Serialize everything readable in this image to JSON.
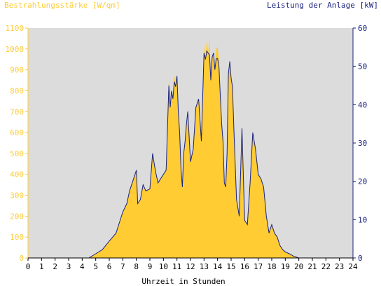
{
  "chart_data": {
    "type": "area",
    "left_axis_label": "Bestrahlungsstärke [W/qm]",
    "right_axis_label": "Leistung der Anlage [kW]",
    "xlabel": "Uhrzeit in Stunden",
    "xlim": [
      0,
      24
    ],
    "x_ticks": [
      "0",
      "1",
      "2",
      "3",
      "4",
      "5",
      "6",
      "7",
      "8",
      "9",
      "10",
      "11",
      "12",
      "13",
      "14",
      "15",
      "16",
      "17",
      "18",
      "19",
      "20",
      "21",
      "22",
      "23",
      "24"
    ],
    "ylim_left": [
      0,
      1100
    ],
    "y_ticks_left": [
      "0",
      "100",
      "200",
      "300",
      "400",
      "500",
      "600",
      "700",
      "800",
      "900",
      "1000",
      "1100"
    ],
    "ylim_right": [
      0,
      60
    ],
    "y_ticks_right": [
      "0",
      "10",
      "20",
      "30",
      "40",
      "50",
      "60"
    ],
    "colors": {
      "irradiance": "#ffcc33",
      "power": "#1a237e",
      "left_axis": "#ffcc33",
      "right_axis": "#1a237e",
      "plot_bg": "#dcdcdc"
    },
    "series": [
      {
        "name": "Bestrahlungsstärke [W/qm]",
        "axis": "left",
        "x": [
          0,
          4.5,
          5,
          5.5,
          6,
          6.5,
          7,
          7.3,
          7.5,
          7.8,
          8,
          8.1,
          8.3,
          8.5,
          8.7,
          9,
          9.2,
          9.4,
          9.6,
          9.8,
          10,
          10.2,
          10.4,
          10.5,
          10.6,
          10.7,
          10.8,
          10.9,
          11,
          11.1,
          11.2,
          11.3,
          11.4,
          11.5,
          11.6,
          11.7,
          11.8,
          12,
          12.2,
          12.4,
          12.6,
          12.8,
          13,
          13.1,
          13.2,
          13.3,
          13.4,
          13.5,
          13.6,
          13.7,
          13.8,
          13.9,
          14,
          14.1,
          14.2,
          14.3,
          14.4,
          14.5,
          14.6,
          14.7,
          14.8,
          14.9,
          15,
          15.1,
          15.2,
          15.4,
          15.6,
          15.8,
          16,
          16.2,
          16.4,
          16.6,
          16.8,
          17,
          17.2,
          17.4,
          17.6,
          17.8,
          18,
          18.2,
          18.4,
          18.6,
          18.8,
          19,
          19.3,
          19.6,
          20,
          20.4,
          24
        ],
        "values": [
          0,
          0,
          20,
          40,
          80,
          120,
          220,
          260,
          320,
          380,
          420,
          260,
          280,
          350,
          320,
          330,
          500,
          420,
          360,
          380,
          400,
          420,
          860,
          720,
          800,
          760,
          880,
          820,
          870,
          700,
          600,
          420,
          340,
          500,
          560,
          640,
          700,
          460,
          520,
          720,
          760,
          560,
          1020,
          950,
          1040,
          980,
          1050,
          850,
          960,
          980,
          900,
          1000,
          1010,
          950,
          780,
          640,
          560,
          360,
          340,
          500,
          880,
          940,
          860,
          820,
          620,
          280,
          200,
          620,
          180,
          160,
          360,
          600,
          520,
          400,
          380,
          340,
          200,
          120,
          160,
          120,
          100,
          60,
          40,
          30,
          20,
          10,
          0,
          0,
          0
        ]
      },
      {
        "name": "Leistung der Anlage [kW]",
        "axis": "right",
        "x": [
          0,
          4.5,
          5,
          5.5,
          6,
          6.5,
          7,
          7.3,
          7.5,
          7.8,
          8,
          8.1,
          8.3,
          8.5,
          8.7,
          9,
          9.2,
          9.4,
          9.6,
          9.8,
          10,
          10.2,
          10.4,
          10.5,
          10.6,
          10.7,
          10.8,
          10.9,
          11,
          11.1,
          11.2,
          11.3,
          11.4,
          11.5,
          11.6,
          11.7,
          11.8,
          12,
          12.2,
          12.4,
          12.6,
          12.8,
          13,
          13.1,
          13.2,
          13.3,
          13.4,
          13.5,
          13.6,
          13.7,
          13.8,
          13.9,
          14,
          14.1,
          14.2,
          14.3,
          14.4,
          14.5,
          14.6,
          14.7,
          14.8,
          14.9,
          15,
          15.1,
          15.2,
          15.4,
          15.6,
          15.8,
          16,
          16.2,
          16.4,
          16.6,
          16.8,
          17,
          17.2,
          17.4,
          17.6,
          17.8,
          18,
          18.2,
          18.4,
          18.6,
          18.8,
          19,
          19.3,
          19.6,
          20,
          20.4,
          24
        ],
        "values": [
          0,
          0,
          1.1,
          2.2,
          4.4,
          6.5,
          12,
          14.2,
          17.5,
          20.7,
          22.9,
          14.2,
          15.3,
          19.1,
          17.5,
          18,
          27.3,
          22.9,
          19.6,
          20.7,
          21.8,
          22.9,
          45,
          39.3,
          43.6,
          41.5,
          46,
          44.7,
          47.5,
          38.2,
          32.7,
          22.9,
          18.5,
          27.3,
          30.5,
          34.9,
          38.2,
          25.1,
          28.4,
          39.3,
          41.5,
          30.5,
          53.5,
          51.8,
          54,
          53.5,
          53,
          46.4,
          52.4,
          53.5,
          49.1,
          52,
          52,
          50,
          42.5,
          34.9,
          30.5,
          19.6,
          18.5,
          27.3,
          48,
          51.3,
          46.9,
          44.7,
          33.8,
          15.3,
          10.9,
          33.8,
          9.8,
          8.7,
          19.6,
          32.7,
          28.4,
          21.8,
          20.7,
          18.5,
          10.9,
          6.5,
          8.7,
          6.5,
          5.5,
          3.3,
          2.2,
          1.6,
          1.1,
          0.5,
          0,
          0,
          0
        ]
      }
    ]
  }
}
